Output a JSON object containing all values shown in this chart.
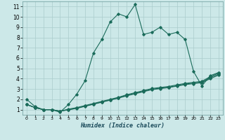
{
  "xlabel": "Humidex (Indice chaleur)",
  "bg_color": "#cce8e8",
  "grid_color": "#aacccc",
  "line_color": "#1a6b5a",
  "xlim": [
    -0.5,
    23.5
  ],
  "ylim": [
    0.5,
    11.5
  ],
  "xticks": [
    0,
    1,
    2,
    3,
    4,
    5,
    6,
    7,
    8,
    9,
    10,
    11,
    12,
    13,
    14,
    15,
    16,
    17,
    18,
    19,
    20,
    21,
    22,
    23
  ],
  "yticks": [
    1,
    2,
    3,
    4,
    5,
    6,
    7,
    8,
    9,
    10,
    11
  ],
  "line1_x": [
    0,
    1,
    2,
    3,
    4,
    5,
    6,
    7,
    8,
    9,
    10,
    11,
    12,
    13,
    14,
    15,
    16,
    17,
    18,
    19,
    20,
    21,
    22,
    23
  ],
  "line1_y": [
    2.0,
    1.3,
    1.0,
    1.0,
    0.75,
    1.5,
    2.5,
    3.8,
    6.5,
    7.8,
    9.5,
    10.3,
    10.0,
    11.2,
    8.3,
    8.5,
    9.0,
    8.3,
    8.5,
    7.8,
    4.7,
    3.3,
    4.3,
    4.6
  ],
  "line2_x": [
    0,
    1,
    2,
    3,
    4,
    5,
    6,
    7,
    8,
    9,
    10,
    11,
    12,
    13,
    14,
    15,
    16,
    17,
    18,
    19,
    20,
    21,
    22,
    23
  ],
  "line2_y": [
    1.5,
    1.2,
    1.0,
    1.0,
    0.85,
    1.05,
    1.2,
    1.4,
    1.6,
    1.8,
    2.0,
    2.2,
    2.45,
    2.65,
    2.85,
    3.05,
    3.15,
    3.25,
    3.4,
    3.55,
    3.65,
    3.75,
    4.2,
    4.55
  ],
  "line3_x": [
    0,
    1,
    2,
    3,
    4,
    5,
    6,
    7,
    8,
    9,
    10,
    11,
    12,
    13,
    14,
    15,
    16,
    17,
    18,
    19,
    20,
    21,
    22,
    23
  ],
  "line3_y": [
    1.5,
    1.2,
    1.0,
    1.0,
    0.85,
    1.0,
    1.15,
    1.35,
    1.55,
    1.75,
    1.95,
    2.15,
    2.38,
    2.58,
    2.78,
    2.98,
    3.08,
    3.18,
    3.32,
    3.48,
    3.58,
    3.68,
    4.1,
    4.45
  ],
  "line4_x": [
    0,
    1,
    2,
    3,
    4,
    5,
    6,
    7,
    8,
    9,
    10,
    11,
    12,
    13,
    14,
    15,
    16,
    17,
    18,
    19,
    20,
    21,
    22,
    23
  ],
  "line4_y": [
    1.5,
    1.2,
    1.0,
    1.0,
    0.85,
    0.98,
    1.12,
    1.32,
    1.52,
    1.72,
    1.92,
    2.12,
    2.34,
    2.54,
    2.74,
    2.94,
    3.04,
    3.14,
    3.28,
    3.43,
    3.52,
    3.62,
    4.0,
    4.35
  ]
}
